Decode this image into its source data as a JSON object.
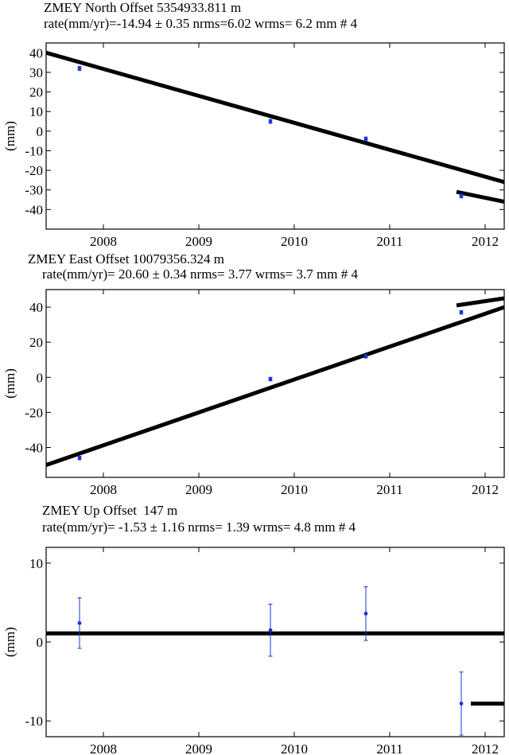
{
  "chart_data": [
    {
      "type": "scatter",
      "title": "ZMEY North Offset  5354933.811 m",
      "subtitle": "rate(mm/yr)=-14.94 ± 0.35 nrms=6.02 wrms= 6.2 mm # 4",
      "ylabel": "(mm)",
      "xlim": [
        2007.4,
        2012.2
      ],
      "ylim": [
        -50,
        45
      ],
      "xticks": [
        2008,
        2009,
        2010,
        2011,
        2012
      ],
      "yticks": [
        40,
        30,
        20,
        10,
        0,
        -10,
        -20,
        -30,
        -40
      ],
      "points": [
        {
          "x": 2007.75,
          "y": 32,
          "err": 1
        },
        {
          "x": 2009.75,
          "y": 5,
          "err": 1
        },
        {
          "x": 2010.75,
          "y": -4,
          "err": 1
        },
        {
          "x": 2011.75,
          "y": -33,
          "err": 1
        }
      ],
      "fit_lines": [
        {
          "x": [
            2007.4,
            2012.2
          ],
          "y": [
            40,
            -26
          ]
        },
        {
          "x": [
            2011.7,
            2012.2
          ],
          "y": [
            -31,
            -36
          ]
        }
      ],
      "grid": false
    },
    {
      "type": "scatter",
      "title": "ZMEY East Offset  10079356.324 m",
      "subtitle": "rate(mm/yr)= 20.60 ± 0.34 nrms= 3.77 wrms= 3.7 mm # 4",
      "ylabel": "(mm)",
      "xlim": [
        2007.4,
        2012.2
      ],
      "ylim": [
        -57,
        50
      ],
      "xticks": [
        2008,
        2009,
        2010,
        2011,
        2012
      ],
      "yticks": [
        40,
        20,
        0,
        -20,
        -40
      ],
      "points": [
        {
          "x": 2007.75,
          "y": -46,
          "err": 1
        },
        {
          "x": 2009.75,
          "y": -1,
          "err": 1
        },
        {
          "x": 2010.75,
          "y": 12,
          "err": 1
        },
        {
          "x": 2011.75,
          "y": 37,
          "err": 1
        }
      ],
      "fit_lines": [
        {
          "x": [
            2007.4,
            2012.2
          ],
          "y": [
            -50,
            40
          ]
        },
        {
          "x": [
            2011.7,
            2012.2
          ],
          "y": [
            41,
            45
          ]
        }
      ],
      "grid": false
    },
    {
      "type": "scatter",
      "title": "ZMEY Up Offset",
      "title_value": "147 m",
      "subtitle": "rate(mm/yr)= -1.53 ± 1.16 nrms= 1.39 wrms= 4.8 mm # 4",
      "ylabel": "(mm)",
      "xlim": [
        2007.4,
        2012.2
      ],
      "ylim": [
        -12,
        12
      ],
      "xticks": [
        2008,
        2009,
        2010,
        2011,
        2012
      ],
      "yticks": [
        10,
        0,
        -10
      ],
      "points": [
        {
          "x": 2007.75,
          "y": 2.4,
          "err": 3.2
        },
        {
          "x": 2009.75,
          "y": 1.5,
          "err": 3.3
        },
        {
          "x": 2010.75,
          "y": 3.6,
          "err": 3.4
        },
        {
          "x": 2011.75,
          "y": -7.8,
          "err": 4.0
        }
      ],
      "fit_lines": [
        {
          "x": [
            2007.4,
            2012.2
          ],
          "y": [
            1.1,
            1.1
          ]
        },
        {
          "x": [
            2011.85,
            2012.2
          ],
          "y": [
            -7.8,
            -7.8
          ]
        }
      ],
      "grid": false
    }
  ],
  "colors": {
    "points": "#1a33d6",
    "fit": "#000000",
    "axis": "#000000"
  }
}
